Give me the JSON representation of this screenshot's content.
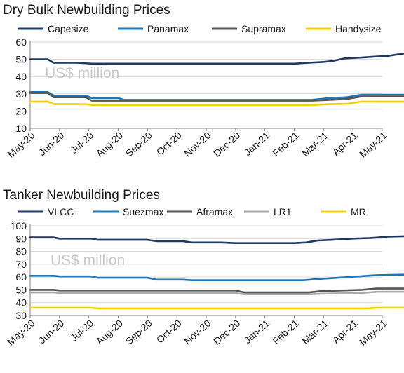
{
  "chart_data": [
    {
      "type": "line",
      "title": "Dry Bulk Newbuilding Prices",
      "annotation": "US$ million",
      "legend_position": "top",
      "grid": true,
      "x_labels": [
        "May-20",
        "Jun-20",
        "Jul-20",
        "Aug-20",
        "Sep-20",
        "Oct-20",
        "Nov-20",
        "Dec-20",
        "Jan-21",
        "Feb-21",
        "Mar-21",
        "Apr-21",
        "May-21"
      ],
      "ylim": [
        10,
        60
      ],
      "yticks": [
        10,
        20,
        30,
        40,
        50,
        60
      ],
      "series": [
        {
          "name": "Capesize",
          "color": "#203864",
          "points": [
            [
              0,
              50
            ],
            [
              0.6,
              50
            ],
            [
              0.8,
              48
            ],
            [
              1.6,
              48
            ],
            [
              2.1,
              47.5
            ],
            [
              9,
              47.5
            ],
            [
              9.5,
              48
            ],
            [
              10,
              48.5
            ],
            [
              10.3,
              49
            ],
            [
              10.7,
              50.5
            ],
            [
              11.3,
              51
            ],
            [
              11.7,
              51.5
            ],
            [
              12.2,
              52
            ],
            [
              12.6,
              53
            ],
            [
              13,
              54
            ]
          ]
        },
        {
          "name": "Panamax",
          "color": "#1f77b4",
          "points": [
            [
              0,
              31
            ],
            [
              0.6,
              31
            ],
            [
              0.8,
              29
            ],
            [
              1.9,
              29
            ],
            [
              2.1,
              27.5
            ],
            [
              3.0,
              27.5
            ],
            [
              3.2,
              26.5
            ],
            [
              9.6,
              26.5
            ],
            [
              10.2,
              27.5
            ],
            [
              10.8,
              28
            ],
            [
              11.3,
              29.5
            ],
            [
              13,
              29.5
            ]
          ]
        },
        {
          "name": "Supramax",
          "color": "#555555",
          "points": [
            [
              0,
              30.5
            ],
            [
              0.6,
              30.5
            ],
            [
              0.8,
              28
            ],
            [
              1.9,
              28
            ],
            [
              2.1,
              26
            ],
            [
              9.6,
              26
            ],
            [
              10.2,
              26.5
            ],
            [
              10.8,
              27
            ],
            [
              11.3,
              28.5
            ],
            [
              13,
              28.5
            ]
          ]
        },
        {
          "name": "Handysize",
          "color": "#f5d000",
          "points": [
            [
              0,
              25.5
            ],
            [
              0.6,
              25.5
            ],
            [
              0.8,
              24
            ],
            [
              1.9,
              24
            ],
            [
              2.1,
              23.5
            ],
            [
              9.6,
              23.5
            ],
            [
              10.2,
              24
            ],
            [
              10.8,
              24.2
            ],
            [
              11.3,
              25.5
            ],
            [
              13,
              25.5
            ]
          ]
        }
      ]
    },
    {
      "type": "line",
      "title": "Tanker Newbuilding Prices",
      "annotation": "US$ million",
      "legend_position": "top",
      "grid": true,
      "x_labels": [
        "May-20",
        "Jun-20",
        "Jul-20",
        "Aug-20",
        "Sep-20",
        "Oct-20",
        "Nov-20",
        "Dec-20",
        "Jan-21",
        "Feb-21",
        "Mar-21",
        "Apr-21",
        "May-21"
      ],
      "ylim": [
        30,
        100
      ],
      "yticks": [
        30,
        40,
        50,
        60,
        70,
        80,
        90,
        100
      ],
      "series": [
        {
          "name": "VLCC",
          "color": "#203864",
          "points": [
            [
              0,
              91
            ],
            [
              0.8,
              91
            ],
            [
              1,
              90
            ],
            [
              2.1,
              90
            ],
            [
              2.3,
              89
            ],
            [
              4,
              89
            ],
            [
              4.3,
              88
            ],
            [
              5.2,
              88
            ],
            [
              5.5,
              87
            ],
            [
              6.5,
              87
            ],
            [
              7,
              86.5
            ],
            [
              9,
              86.5
            ],
            [
              9.4,
              87
            ],
            [
              9.8,
              88.5
            ],
            [
              10.3,
              89
            ],
            [
              11,
              90
            ],
            [
              11.6,
              90.5
            ],
            [
              12.2,
              91.5
            ],
            [
              13,
              92
            ]
          ]
        },
        {
          "name": "Suezmax",
          "color": "#1f77b4",
          "points": [
            [
              0,
              61
            ],
            [
              0.8,
              61
            ],
            [
              1,
              60.5
            ],
            [
              2.1,
              60.5
            ],
            [
              2.3,
              59.5
            ],
            [
              4,
              59.5
            ],
            [
              4.3,
              58
            ],
            [
              5.2,
              58
            ],
            [
              5.5,
              57.5
            ],
            [
              9.3,
              57.5
            ],
            [
              9.8,
              58.5
            ],
            [
              10.5,
              59.5
            ],
            [
              11.2,
              60.5
            ],
            [
              11.8,
              61.5
            ],
            [
              13,
              62
            ]
          ]
        },
        {
          "name": "Aframax",
          "color": "#555555",
          "points": [
            [
              0,
              50
            ],
            [
              0.8,
              50
            ],
            [
              1,
              49.5
            ],
            [
              7,
              49.5
            ],
            [
              7.3,
              48
            ],
            [
              9.5,
              48
            ],
            [
              9.9,
              49
            ],
            [
              11.3,
              50
            ],
            [
              11.8,
              51
            ],
            [
              13,
              51
            ]
          ]
        },
        {
          "name": "LR1",
          "color": "#aaaaaa",
          "points": [
            [
              0,
              48
            ],
            [
              0.8,
              48
            ],
            [
              1,
              47.5
            ],
            [
              7,
              47.5
            ],
            [
              7.3,
              46.5
            ],
            [
              9.5,
              46.5
            ],
            [
              9.9,
              47
            ],
            [
              11.3,
              47.5
            ],
            [
              11.8,
              48.5
            ],
            [
              13,
              48.5
            ]
          ]
        },
        {
          "name": "MR",
          "color": "#f5d000",
          "points": [
            [
              0,
              36
            ],
            [
              2.1,
              36
            ],
            [
              2.3,
              35.5
            ],
            [
              11.5,
              35.5
            ],
            [
              11.8,
              36
            ],
            [
              13,
              36
            ]
          ]
        }
      ]
    }
  ]
}
